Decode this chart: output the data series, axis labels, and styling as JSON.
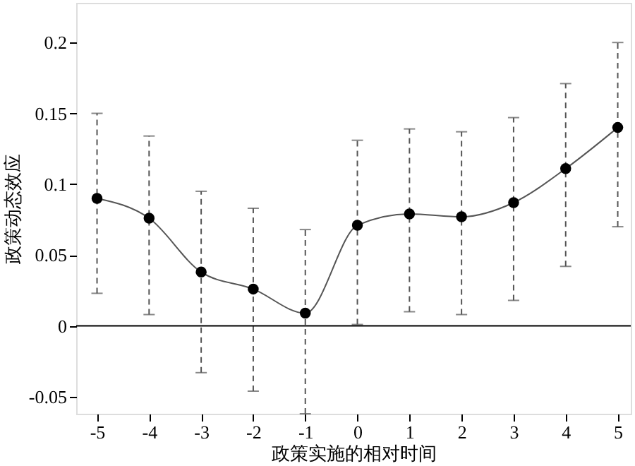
{
  "chart_data": {
    "type": "line",
    "xlabel": "政策实施的相对时间",
    "ylabel": "政策动态效应",
    "x": [
      -5,
      -4,
      -3,
      -2,
      -1,
      0,
      1,
      2,
      3,
      4,
      5
    ],
    "series": [
      {
        "color": "#000000",
        "values": [
          0.09,
          0.076,
          0.038,
          0.026,
          0.009,
          0.071,
          0.079,
          0.077,
          0.087,
          0.111,
          0.14
        ],
        "errors": [
          [
            0.023,
            0.15
          ],
          [
            0.008,
            0.134
          ],
          [
            -0.033,
            0.095
          ],
          [
            -0.046,
            0.083
          ],
          [
            -0.062,
            0.068
          ],
          [
            0.001,
            0.131
          ],
          [
            0.01,
            0.139
          ],
          [
            0.008,
            0.137
          ],
          [
            0.018,
            0.147
          ],
          [
            0.042,
            0.171
          ],
          [
            0.07,
            0.2
          ]
        ]
      }
    ],
    "xlim": [
      -5.4,
      5.25
    ],
    "xticks": [
      -5,
      -4,
      -3,
      -2,
      -1,
      0,
      1,
      2,
      3,
      4,
      5
    ],
    "ylim": [
      -0.062,
      0.228
    ],
    "yticks": [
      -0.05,
      0,
      0.05,
      0.1,
      0.15,
      0.2
    ],
    "ref_lines": [
      {
        "axis": "y",
        "value": 0,
        "color": "#000000",
        "line_style": "solid"
      }
    ],
    "marker": "circle",
    "line_style": "solid",
    "grid": false
  }
}
